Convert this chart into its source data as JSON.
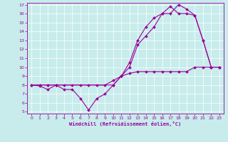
{
  "xlabel": "Windchill (Refroidissement éolien,°C)",
  "bg_color": "#c8ecec",
  "line_color": "#990099",
  "xlim": [
    -0.5,
    23.5
  ],
  "ylim": [
    4.8,
    17.2
  ],
  "xticks": [
    0,
    1,
    2,
    3,
    4,
    5,
    6,
    7,
    8,
    9,
    10,
    11,
    12,
    13,
    14,
    15,
    16,
    17,
    18,
    19,
    20,
    21,
    22,
    23
  ],
  "yticks": [
    5,
    6,
    7,
    8,
    9,
    10,
    11,
    12,
    13,
    14,
    15,
    16,
    17
  ],
  "line1_x": [
    0,
    1,
    2,
    3,
    4,
    5,
    6,
    7,
    8,
    9,
    10,
    11,
    12,
    13,
    14,
    15,
    16,
    17,
    18,
    19,
    20,
    21,
    22,
    23
  ],
  "line1_y": [
    8,
    8,
    8,
    8,
    8,
    8,
    8,
    8,
    8,
    8,
    8.5,
    9,
    9.3,
    9.5,
    9.5,
    9.5,
    9.5,
    9.5,
    9.5,
    9.5,
    10,
    10,
    10,
    10
  ],
  "line2_x": [
    0,
    1,
    2,
    3,
    4,
    5,
    6,
    7,
    8,
    9,
    10,
    11,
    12,
    13,
    14,
    15,
    16,
    17,
    18,
    19,
    20,
    21,
    22,
    23
  ],
  "line2_y": [
    8,
    7.9,
    7.5,
    8,
    7.5,
    7.5,
    6.5,
    5.2,
    6.5,
    7.0,
    8,
    9,
    10,
    12.5,
    13.5,
    14.5,
    16,
    16,
    17,
    16.5,
    15.8,
    13,
    10,
    10
  ],
  "line3_x": [
    0,
    1,
    2,
    3,
    10,
    11,
    12,
    13,
    14,
    15,
    16,
    17,
    18,
    19,
    20,
    21,
    22,
    23
  ],
  "line3_y": [
    8,
    8,
    8,
    8,
    8,
    9,
    10.5,
    13,
    14.5,
    15.5,
    16,
    16.8,
    16,
    16,
    15.8,
    13,
    10,
    10
  ]
}
